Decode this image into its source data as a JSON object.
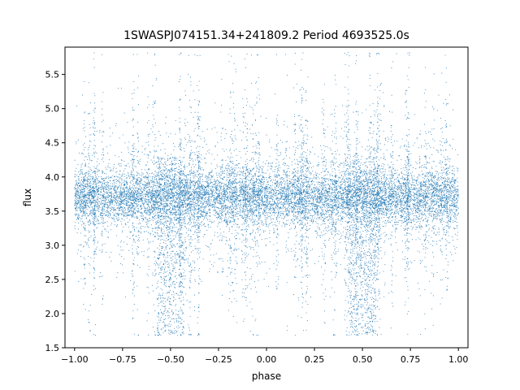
{
  "chart_data": {
    "type": "scatter",
    "title": "1SWASPJ074151.34+241809.2 Period 4693525.0s",
    "xlabel": "phase",
    "ylabel": "flux",
    "xlim": [
      -1.05,
      1.05
    ],
    "ylim": [
      1.5,
      5.9
    ],
    "x_ticks": [
      -1.0,
      -0.75,
      -0.5,
      -0.25,
      0.0,
      0.25,
      0.5,
      0.75,
      1.0
    ],
    "x_tick_labels": [
      "−1.00",
      "−0.75",
      "−0.50",
      "−0.25",
      "0.00",
      "0.25",
      "0.50",
      "0.75",
      "1.00"
    ],
    "y_ticks": [
      1.5,
      2.0,
      2.5,
      3.0,
      3.5,
      4.0,
      4.5,
      5.0,
      5.5
    ],
    "y_tick_labels": [
      "1.5",
      "2.0",
      "2.5",
      "3.0",
      "3.5",
      "4.0",
      "4.5",
      "5.0",
      "5.5"
    ],
    "grid": false,
    "marker_color": "#1f77b4",
    "phase_range": [
      -1.0,
      1.0
    ],
    "flux_core": [
      3.3,
      4.1
    ],
    "flux_median": 3.7,
    "flux_floor": 1.68,
    "dip_phases": [
      -0.5,
      0.5
    ],
    "dip_flux_floor": 1.68
  }
}
